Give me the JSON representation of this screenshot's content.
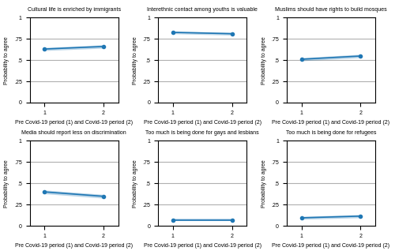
{
  "chart_data": [
    {
      "type": "line",
      "title": "Cultural life is enriched by immigrants",
      "x": [
        1,
        2
      ],
      "values": [
        0.63,
        0.66
      ],
      "ci_low": [
        0.612,
        0.64
      ],
      "ci_high": [
        0.648,
        0.68
      ],
      "xlim": [
        0.75,
        2.25
      ],
      "xticks": [
        1,
        2
      ],
      "ylim": [
        0,
        1
      ],
      "yticks": [
        0,
        {
          "value": 0.25,
          "label": ".25"
        },
        {
          "value": 0.5,
          "label": ".5"
        },
        {
          "value": 0.75,
          "label": ".75"
        },
        1
      ],
      "xlabel": "Pre Covid-19 period (1) and Covid-19 period (2)",
      "ylabel": "Probability to agree",
      "grid": true,
      "marker": "o"
    },
    {
      "type": "line",
      "title": "Interethnic contact among youths is valuable",
      "x": [
        1,
        2
      ],
      "values": [
        0.826,
        0.81
      ],
      "ci_low": [
        0.81,
        0.793
      ],
      "ci_high": [
        0.842,
        0.827
      ],
      "xlim": [
        0.75,
        2.25
      ],
      "xticks": [
        1,
        2
      ],
      "ylim": [
        0,
        1
      ],
      "yticks": [
        0,
        {
          "value": 0.25,
          "label": ".25"
        },
        {
          "value": 0.5,
          "label": ".5"
        },
        {
          "value": 0.75,
          "label": ".75"
        },
        1
      ],
      "xlabel": "Pre Covid-19 period (1) and Covid-19 period (2)",
      "ylabel": "Probability to agree",
      "grid": true,
      "marker": "o"
    },
    {
      "type": "line",
      "title": "Muslims should have rights to build mosques",
      "x": [
        1,
        2
      ],
      "values": [
        0.51,
        0.548
      ],
      "ci_low": [
        0.492,
        0.528
      ],
      "ci_high": [
        0.528,
        0.568
      ],
      "xlim": [
        0.75,
        2.25
      ],
      "xticks": [
        1,
        2
      ],
      "ylim": [
        0,
        1
      ],
      "yticks": [
        0,
        {
          "value": 0.25,
          "label": ".25"
        },
        {
          "value": 0.5,
          "label": ".5"
        },
        {
          "value": 0.75,
          "label": ".75"
        },
        1
      ],
      "xlabel": "Pre Covid-19 period (1) and Covid-19 period (2)",
      "ylabel": "Probability to agree",
      "grid": true,
      "marker": "o"
    },
    {
      "type": "line",
      "title": "Media should report less on discrimination",
      "x": [
        1,
        2
      ],
      "values": [
        0.4,
        0.348
      ],
      "ci_low": [
        0.378,
        0.326
      ],
      "ci_high": [
        0.422,
        0.37
      ],
      "xlim": [
        0.75,
        2.25
      ],
      "xticks": [
        1,
        2
      ],
      "ylim": [
        0,
        1
      ],
      "yticks": [
        0,
        {
          "value": 0.25,
          "label": ".25"
        },
        {
          "value": 0.5,
          "label": ".5"
        },
        {
          "value": 0.75,
          "label": ".75"
        },
        1
      ],
      "xlabel": "Pre Covid-19 period (1) and Covid-19 period (2)",
      "ylabel": "Probability to agree",
      "grid": true,
      "marker": "o"
    },
    {
      "type": "line",
      "title": "Too much is being done for gays and lesbians",
      "x": [
        1,
        2
      ],
      "values": [
        0.068,
        0.068
      ],
      "ci_low": [
        0.054,
        0.054
      ],
      "ci_high": [
        0.082,
        0.082
      ],
      "xlim": [
        0.75,
        2.25
      ],
      "xticks": [
        1,
        2
      ],
      "ylim": [
        0,
        1
      ],
      "yticks": [
        0,
        {
          "value": 0.25,
          "label": ".25"
        },
        {
          "value": 0.5,
          "label": ".5"
        },
        {
          "value": 0.75,
          "label": ".75"
        },
        1
      ],
      "xlabel": "Pre Covid-19 period (1) and Covid-19 period (2)",
      "ylabel": "Probability to agree",
      "grid": true,
      "marker": "o"
    },
    {
      "type": "line",
      "title": "Too much is being done for refugees",
      "x": [
        1,
        2
      ],
      "values": [
        0.095,
        0.115
      ],
      "ci_low": [
        0.078,
        0.096
      ],
      "ci_high": [
        0.112,
        0.134
      ],
      "xlim": [
        0.75,
        2.25
      ],
      "xticks": [
        1,
        2
      ],
      "ylim": [
        0,
        1
      ],
      "yticks": [
        0,
        {
          "value": 0.25,
          "label": ".25"
        },
        {
          "value": 0.5,
          "label": ".5"
        },
        {
          "value": 0.75,
          "label": ".75"
        },
        1
      ],
      "xlabel": "Pre Covid-19 period (1) and Covid-19 period (2)",
      "ylabel": "Probability to agree",
      "grid": true,
      "marker": "o"
    }
  ]
}
